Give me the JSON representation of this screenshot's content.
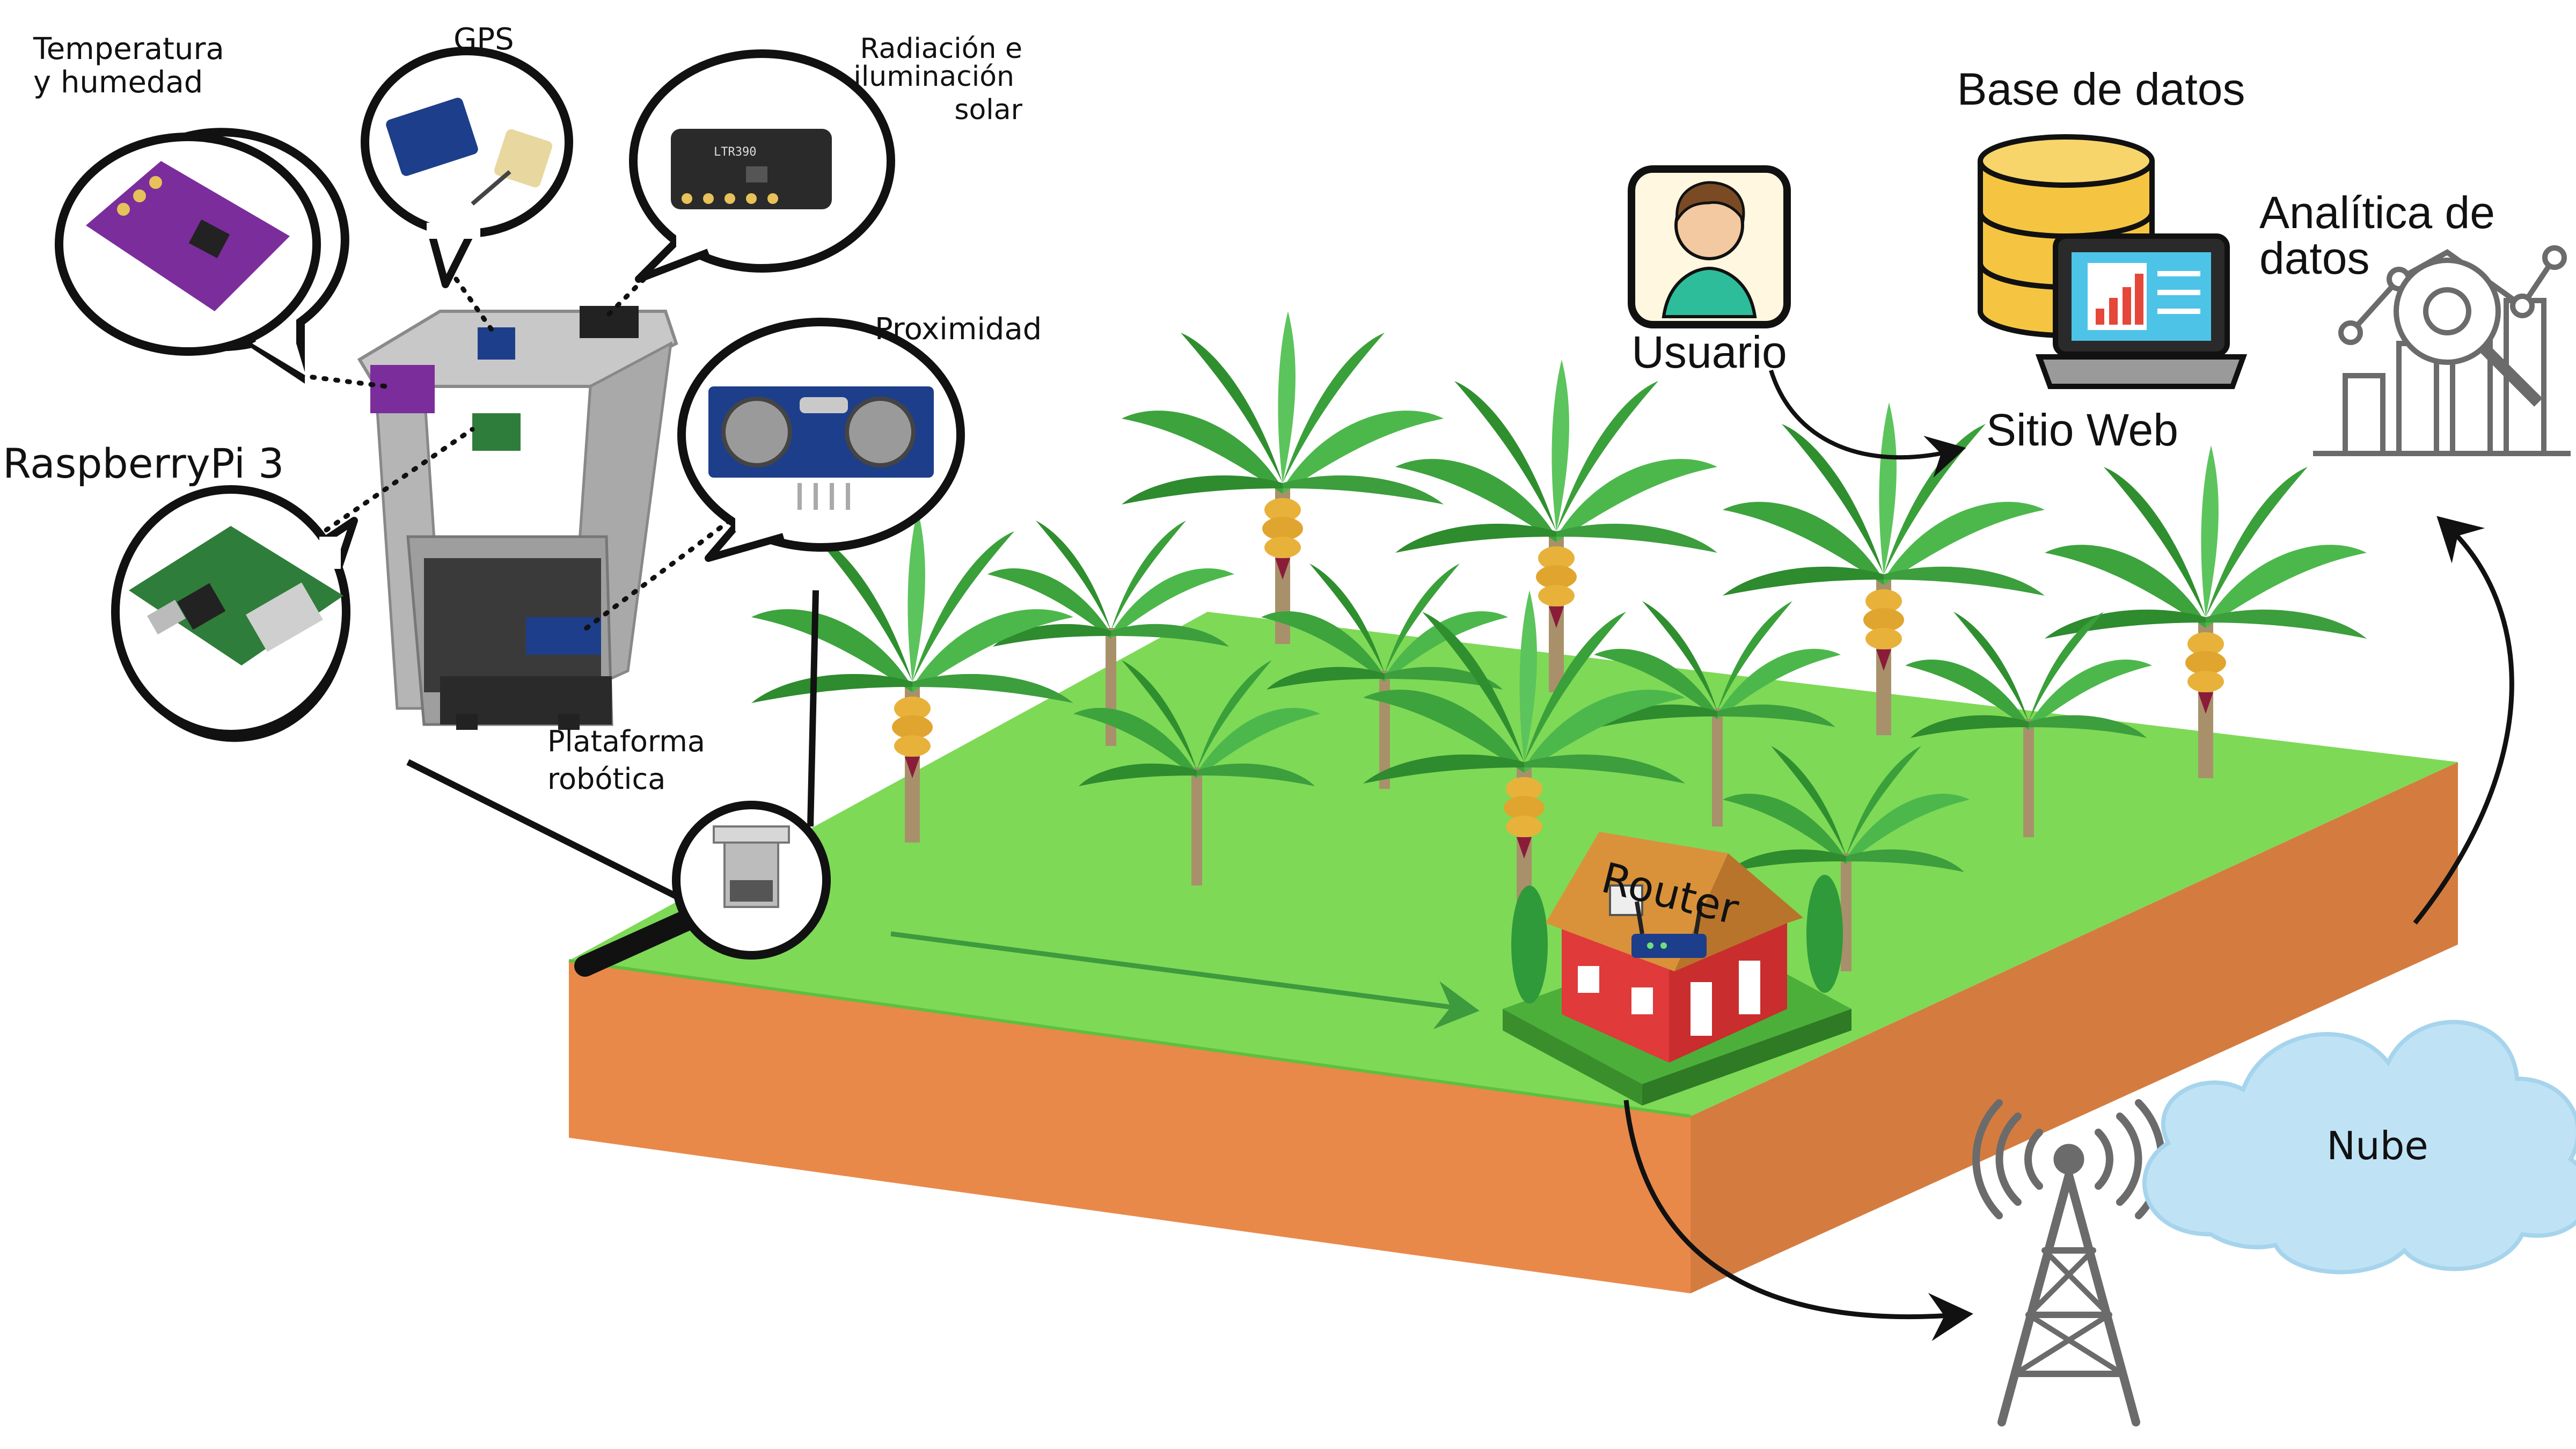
{
  "labels": {
    "temp_line1": "Temperatura",
    "temp_line2": "y humedad",
    "gps": "GPS",
    "rad_line1": "Radiación e",
    "rad_line2": "iluminación",
    "rad_line3": "solar",
    "proximity": "Proximidad",
    "raspberry": "RaspberryPi 3",
    "platform_line1": "Plataforma",
    "platform_line2": "robótica",
    "router": "Router",
    "user": "Usuario",
    "database": "Base de datos",
    "website": "Sitio Web",
    "analytics_line1": "Analítica de",
    "analytics_line2": "datos",
    "cloud": "Nube"
  },
  "colors": {
    "grass": "#7ed957",
    "soil_front": "#e8894a",
    "soil_side": "#d47c40",
    "house_wall": "#e03a3a",
    "roof": "#d9923a",
    "cloud": "#bfe3f5",
    "tower": "#6b6b6b",
    "sensor_purple": "#7b2d9c",
    "sensor_blue": "#1d3e8a",
    "pcb_green": "#2f7d3a",
    "db_gold": "#f5c542"
  },
  "icons": [
    "person-icon",
    "database-icon",
    "laptop-chart-icon",
    "analytics-chart-icon",
    "magnifier-icon",
    "antenna-tower-icon",
    "cloud-icon",
    "house-icon",
    "router-icon",
    "banana-plant-icon",
    "robot-platform-icon",
    "humidity-sensor-icon",
    "gps-module-icon",
    "light-sensor-icon",
    "ultrasonic-sensor-icon",
    "raspberry-pi-icon"
  ]
}
